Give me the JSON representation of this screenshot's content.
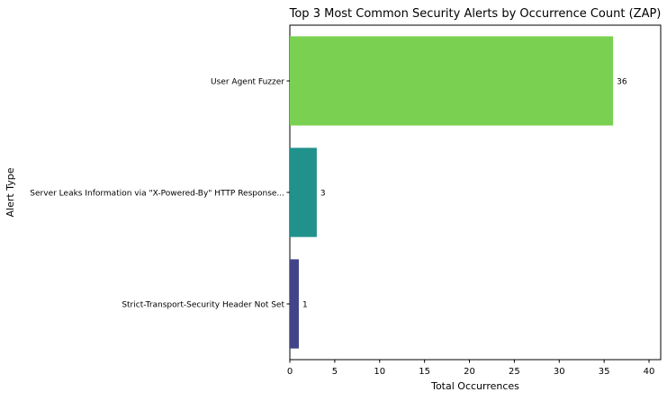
{
  "chart_data": {
    "type": "bar",
    "orientation": "horizontal",
    "title": "Top 3 Most Common Security Alerts by Occurrence Count (ZAP)",
    "xlabel": "Total Occurrences",
    "ylabel": "Alert Type",
    "categories": [
      "User Agent Fuzzer",
      "Server Leaks Information via \"X-Powered-By\" HTTP Response...",
      "Strict-Transport-Security Header Not Set"
    ],
    "values": [
      36,
      3,
      1
    ],
    "data_labels": [
      "36",
      "3",
      "1"
    ],
    "colors": [
      "#7ad151",
      "#21918c",
      "#414487"
    ],
    "xlim": [
      0,
      41.3
    ],
    "xticks": [
      0,
      5,
      10,
      15,
      20,
      25,
      30,
      35,
      40
    ],
    "grid": false,
    "legend": "none"
  }
}
